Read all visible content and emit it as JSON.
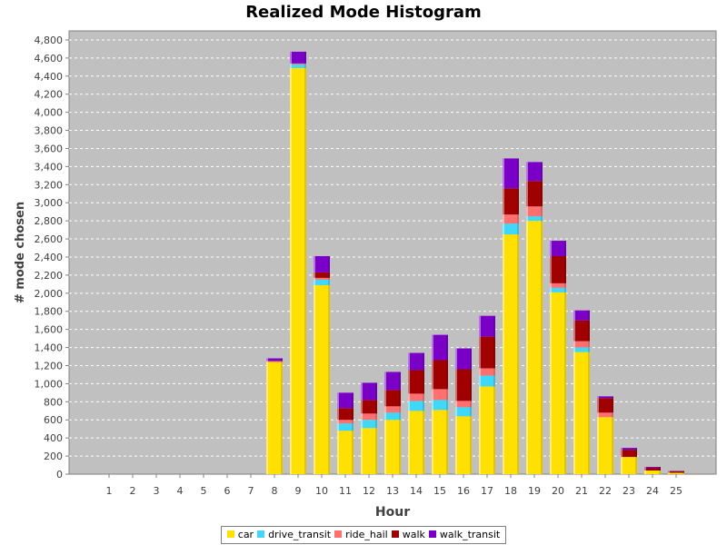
{
  "chart_data": {
    "type": "bar",
    "stacked": true,
    "title": "Realized Mode Histogram",
    "xlabel": "Hour",
    "ylabel": "# mode chosen",
    "ylim": [
      0,
      4900
    ],
    "yticks": [
      0,
      200,
      400,
      600,
      800,
      1000,
      1200,
      1400,
      1600,
      1800,
      2000,
      2200,
      2400,
      2600,
      2800,
      3000,
      3200,
      3400,
      3600,
      3800,
      4000,
      4200,
      4400,
      4600,
      4800
    ],
    "ytick_labels": [
      "0",
      "200",
      "400",
      "600",
      "800",
      "1,000",
      "1,200",
      "1,400",
      "1,600",
      "1,800",
      "2,000",
      "2,200",
      "2,400",
      "2,600",
      "2,800",
      "3,000",
      "3,200",
      "3,400",
      "3,600",
      "3,800",
      "4,000",
      "4,200",
      "4,400",
      "4,600",
      "4,800"
    ],
    "categories": [
      "1",
      "2",
      "3",
      "4",
      "5",
      "6",
      "7",
      "8",
      "9",
      "10",
      "11",
      "12",
      "13",
      "14",
      "15",
      "16",
      "17",
      "18",
      "19",
      "20",
      "21",
      "22",
      "23",
      "24",
      "25"
    ],
    "grid": true,
    "legend_position": "bottom",
    "series": [
      {
        "name": "car",
        "color": "#FFE000",
        "values": [
          0,
          0,
          0,
          0,
          0,
          0,
          0,
          1240,
          4490,
          2090,
          480,
          510,
          600,
          700,
          710,
          640,
          970,
          2650,
          2800,
          2010,
          1350,
          630,
          190,
          40,
          15
        ]
      },
      {
        "name": "drive_transit",
        "color": "#40D8F8",
        "values": [
          0,
          0,
          0,
          0,
          0,
          0,
          0,
          0,
          40,
          60,
          80,
          90,
          80,
          110,
          110,
          100,
          120,
          120,
          50,
          50,
          50,
          0,
          0,
          0,
          0
        ]
      },
      {
        "name": "ride_hail",
        "color": "#FF7070",
        "values": [
          0,
          0,
          0,
          0,
          0,
          0,
          0,
          10,
          10,
          20,
          40,
          70,
          70,
          80,
          120,
          70,
          80,
          100,
          110,
          50,
          70,
          50,
          0,
          0,
          0
        ]
      },
      {
        "name": "walk",
        "color": "#A00000",
        "values": [
          0,
          0,
          0,
          0,
          0,
          0,
          0,
          0,
          0,
          60,
          130,
          150,
          180,
          260,
          320,
          350,
          350,
          290,
          280,
          300,
          230,
          160,
          80,
          30,
          15
        ]
      },
      {
        "name": "walk_transit",
        "color": "#7A00C8",
        "values": [
          0,
          0,
          0,
          0,
          0,
          0,
          0,
          30,
          130,
          180,
          170,
          190,
          200,
          190,
          280,
          230,
          230,
          330,
          210,
          170,
          110,
          20,
          20,
          10,
          5
        ]
      }
    ]
  }
}
